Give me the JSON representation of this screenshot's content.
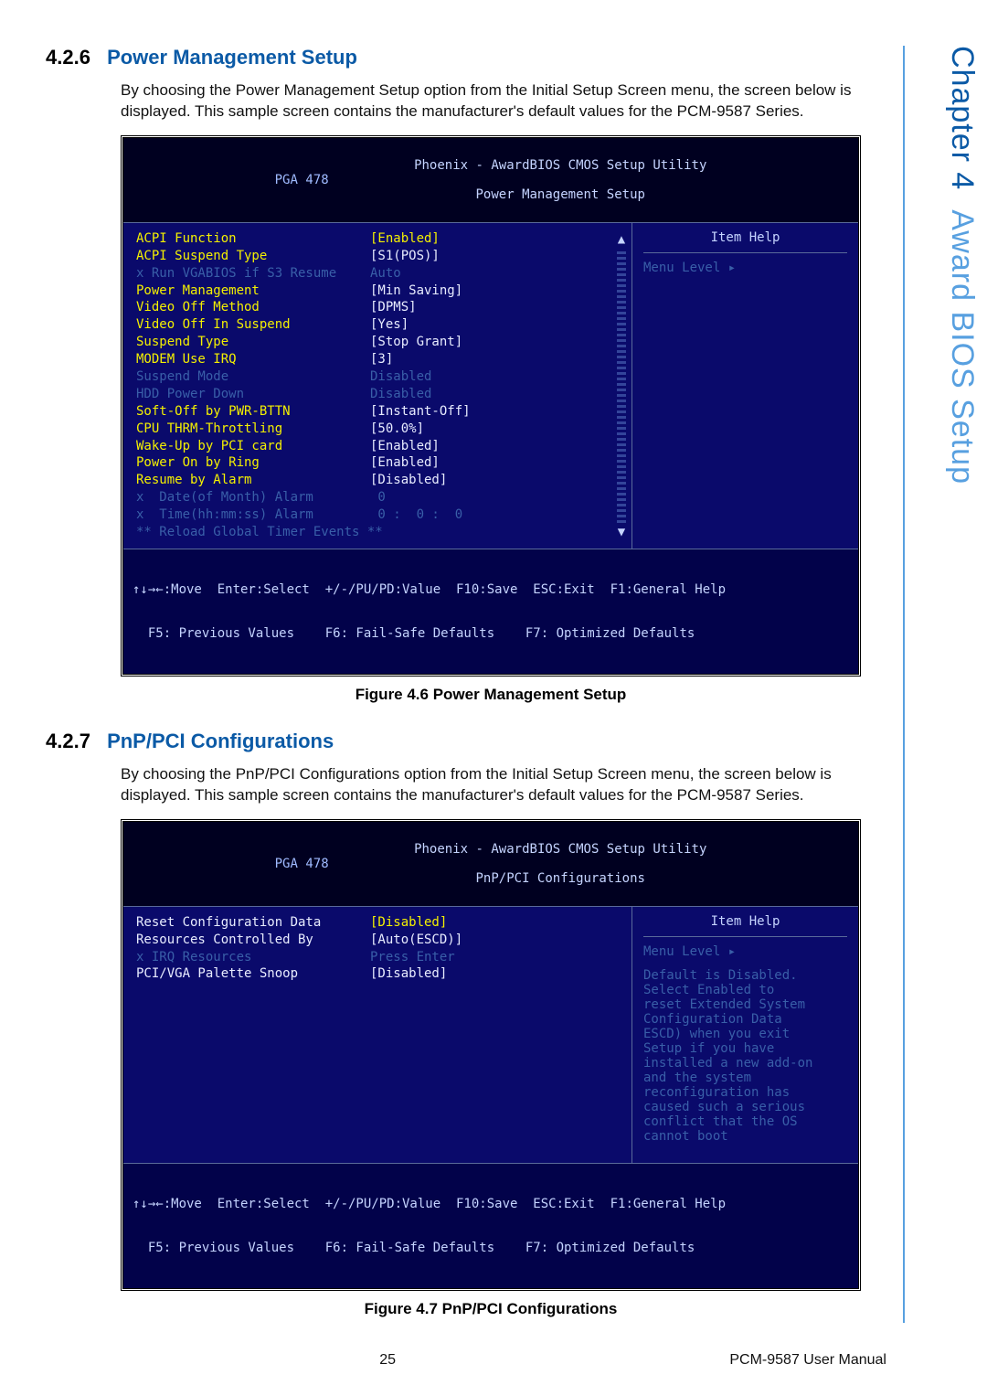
{
  "sideTab": {
    "chapter": "Chapter 4",
    "title": "Award BIOS Setup"
  },
  "section1": {
    "num": "4.2.6",
    "title": "Power Management Setup",
    "body": "By choosing the Power Management Setup option from the Initial Setup Screen menu, the screen below is displayed. This sample screen contains the manufacturer's default values for the PCM-9587 Series."
  },
  "bios1": {
    "pga": "PGA 478",
    "title1": "Phoenix - AwardBIOS CMOS Setup Utility",
    "title2": "Power Management Setup",
    "helpHeading": "Item Help",
    "menuLevel": "Menu Level   ▸",
    "rows": [
      {
        "label": "ACPI Function",
        "value": "[Enabled]",
        "labelClass": "c-yellow",
        "valueClass": "c-yellow"
      },
      {
        "label": "ACPI Suspend Type",
        "value": "[S1(POS)]",
        "labelClass": "c-yellow",
        "valueClass": "c-white"
      },
      {
        "label": "x Run VGABIOS if S3 Resume",
        "value": "Auto",
        "labelClass": "c-dimblue",
        "valueClass": "c-dimblue"
      },
      {
        "label": "Power Management",
        "value": "[Min Saving]",
        "labelClass": "c-yellow",
        "valueClass": "c-white"
      },
      {
        "label": "Video Off Method",
        "value": "[DPMS]",
        "labelClass": "c-yellow",
        "valueClass": "c-white"
      },
      {
        "label": "Video Off In Suspend",
        "value": "[Yes]",
        "labelClass": "c-yellow",
        "valueClass": "c-white"
      },
      {
        "label": "Suspend Type",
        "value": "[Stop Grant]",
        "labelClass": "c-yellow",
        "valueClass": "c-white"
      },
      {
        "label": "MODEM Use IRQ",
        "value": "[3]",
        "labelClass": "c-yellow",
        "valueClass": "c-white"
      },
      {
        "label": "Suspend Mode",
        "value": "Disabled",
        "labelClass": "c-dimblue",
        "valueClass": "c-dimblue"
      },
      {
        "label": "HDD Power Down",
        "value": "Disabled",
        "labelClass": "c-dimblue",
        "valueClass": "c-dimblue"
      },
      {
        "label": "Soft-Off by PWR-BTTN",
        "value": "[Instant-Off]",
        "labelClass": "c-yellow",
        "valueClass": "c-white"
      },
      {
        "label": "CPU THRM-Throttling",
        "value": "[50.0%]",
        "labelClass": "c-yellow",
        "valueClass": "c-white"
      },
      {
        "label": "Wake-Up by PCI card",
        "value": "[Enabled]",
        "labelClass": "c-yellow",
        "valueClass": "c-white"
      },
      {
        "label": "Power On by Ring",
        "value": "[Enabled]",
        "labelClass": "c-yellow",
        "valueClass": "c-white"
      },
      {
        "label": "Resume by Alarm",
        "value": "[Disabled]",
        "labelClass": "c-yellow",
        "valueClass": "c-white"
      },
      {
        "label": "x  Date(of Month) Alarm",
        "value": " 0",
        "labelClass": "c-dimblue",
        "valueClass": "c-dimblue"
      },
      {
        "label": "x  Time(hh:mm:ss) Alarm",
        "value": " 0 :  0 :  0",
        "labelClass": "c-dimblue",
        "valueClass": "c-dimblue"
      },
      {
        "label": "",
        "value": "",
        "labelClass": "",
        "valueClass": ""
      },
      {
        "label": "** Reload Global Timer Events **",
        "value": "",
        "labelClass": "c-dimblue",
        "valueClass": ""
      }
    ],
    "footer1": "↑↓→←:Move  Enter:Select  +/-/PU/PD:Value  F10:Save  ESC:Exit  F1:General Help",
    "footer2": "  F5: Previous Values    F6: Fail-Safe Defaults    F7: Optimized Defaults"
  },
  "caption1": "Figure 4.6 Power Management Setup",
  "section2": {
    "num": "4.2.7",
    "title": "PnP/PCI Configurations",
    "body": "By choosing the PnP/PCI Configurations option from the Initial Setup Screen menu, the screen below is displayed. This sample screen contains the manufacturer's default values for the PCM-9587 Series."
  },
  "bios2": {
    "pga": "PGA 478",
    "title1": "Phoenix - AwardBIOS CMOS Setup Utility",
    "title2": "PnP/PCI Configurations",
    "helpHeading": "Item Help",
    "menuLevel": "Menu Level   ▸",
    "rows": [
      {
        "label": "Reset Configuration Data",
        "value": "[Disabled]",
        "labelClass": "c-white",
        "valueClass": "c-yellow"
      },
      {
        "label": "",
        "value": "",
        "labelClass": "",
        "valueClass": ""
      },
      {
        "label": "Resources Controlled By",
        "value": "[Auto(ESCD)]",
        "labelClass": "c-white",
        "valueClass": "c-white"
      },
      {
        "label": "x IRQ Resources",
        "value": "Press Enter",
        "labelClass": "c-dimblue",
        "valueClass": "c-dimblue"
      },
      {
        "label": "",
        "value": "",
        "labelClass": "",
        "valueClass": ""
      },
      {
        "label": "PCI/VGA Palette Snoop",
        "value": "[Disabled]",
        "labelClass": "c-white",
        "valueClass": "c-white"
      }
    ],
    "helpBody": [
      "Default is Disabled.",
      "Select Enabled to",
      "reset Extended System",
      "Configuration Data",
      "ESCD) when you exit",
      "Setup if you have",
      "installed a new add-on",
      "and the system",
      "reconfiguration has",
      "caused such a serious",
      "conflict that the OS",
      "cannot boot"
    ],
    "footer1": "↑↓→←:Move  Enter:Select  +/-/PU/PD:Value  F10:Save  ESC:Exit  F1:General Help",
    "footer2": "  F5: Previous Values    F6: Fail-Safe Defaults    F7: Optimized Defaults"
  },
  "caption2": "Figure 4.7 PnP/PCI Configurations",
  "footer": {
    "pageNum": "25",
    "docTitle": "PCM-9587 User Manual"
  }
}
